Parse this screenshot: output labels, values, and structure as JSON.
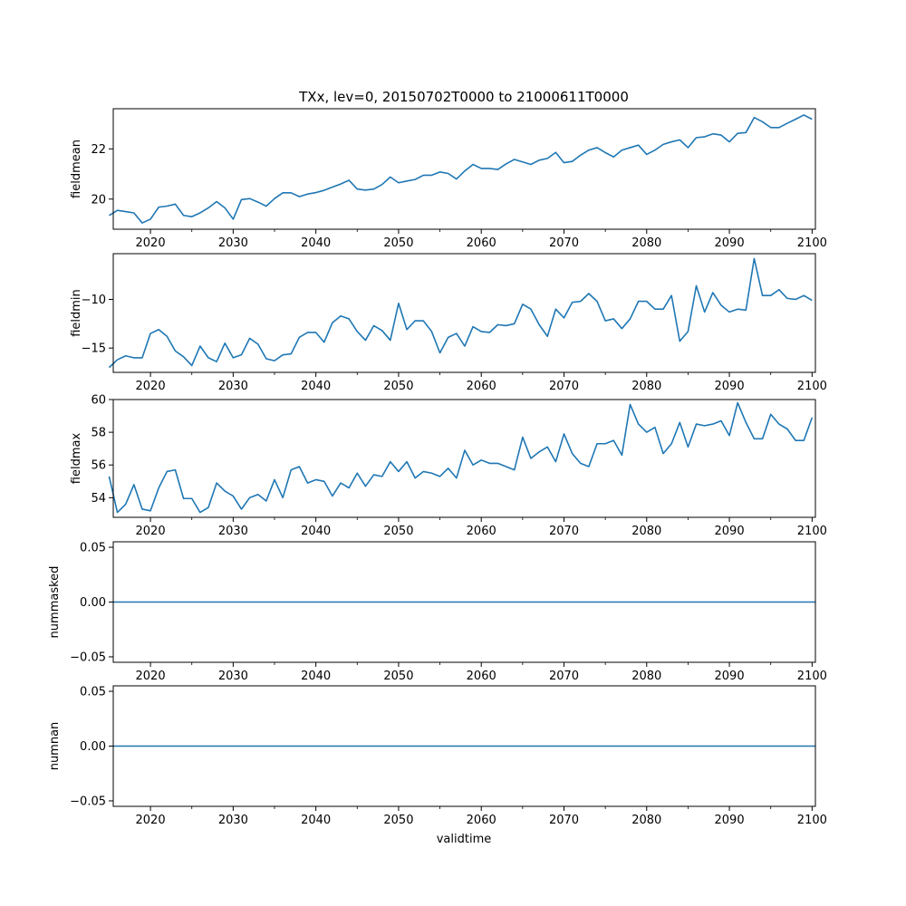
{
  "figure": {
    "title": "TXx, lev=0, 20150702T0000 to 21000611T0000",
    "xlabel": "validtime",
    "line_color": "#1f77b4"
  },
  "chart_data": [
    {
      "type": "line",
      "ylabel": "fieldmean",
      "xlim": [
        2015.5,
        2100.4
      ],
      "ylim": [
        18.8,
        23.6
      ],
      "xticks": [
        2020,
        2030,
        2040,
        2050,
        2060,
        2070,
        2080,
        2090,
        2100
      ],
      "yticks": [
        20,
        22
      ],
      "x": [
        2015,
        2016,
        2017,
        2018,
        2019,
        2020,
        2021,
        2022,
        2023,
        2024,
        2025,
        2026,
        2027,
        2028,
        2029,
        2030,
        2031,
        2032,
        2033,
        2034,
        2035,
        2036,
        2037,
        2038,
        2039,
        2040,
        2041,
        2042,
        2043,
        2044,
        2045,
        2046,
        2047,
        2048,
        2049,
        2050,
        2051,
        2052,
        2053,
        2054,
        2055,
        2056,
        2057,
        2058,
        2059,
        2060,
        2061,
        2062,
        2063,
        2064,
        2065,
        2066,
        2067,
        2068,
        2069,
        2070,
        2071,
        2072,
        2073,
        2074,
        2075,
        2076,
        2077,
        2078,
        2079,
        2080,
        2081,
        2082,
        2083,
        2084,
        2085,
        2086,
        2087,
        2088,
        2089,
        2090,
        2091,
        2092,
        2093,
        2094,
        2095,
        2096,
        2097,
        2098,
        2099,
        2100
      ],
      "values": [
        19.35,
        19.55,
        19.5,
        19.45,
        19.05,
        19.2,
        19.68,
        19.72,
        19.8,
        19.35,
        19.3,
        19.45,
        19.65,
        19.9,
        19.65,
        19.2,
        19.98,
        20.02,
        19.88,
        19.72,
        20.02,
        20.25,
        20.25,
        20.1,
        20.2,
        20.26,
        20.35,
        20.48,
        20.6,
        20.75,
        20.4,
        20.36,
        20.4,
        20.58,
        20.88,
        20.65,
        20.72,
        20.78,
        20.95,
        20.95,
        21.08,
        21.02,
        20.8,
        21.12,
        21.38,
        21.22,
        21.22,
        21.18,
        21.4,
        21.58,
        21.48,
        21.38,
        21.55,
        21.62,
        21.86,
        21.45,
        21.5,
        21.75,
        21.95,
        22.05,
        21.85,
        21.68,
        21.95,
        22.05,
        22.15,
        21.78,
        21.95,
        22.18,
        22.28,
        22.36,
        22.05,
        22.45,
        22.48,
        22.6,
        22.55,
        22.28,
        22.62,
        22.65,
        23.25,
        23.08,
        22.85,
        22.85,
        23.02,
        23.18,
        23.35,
        23.18
      ]
    },
    {
      "type": "line",
      "ylabel": "fieldmin",
      "xlim": [
        2015.5,
        2100.4
      ],
      "ylim": [
        -17.5,
        -5.3
      ],
      "xticks": [
        2020,
        2030,
        2040,
        2050,
        2060,
        2070,
        2080,
        2090,
        2100
      ],
      "yticks": [
        -15,
        -10
      ],
      "x": [
        2015,
        2016,
        2017,
        2018,
        2019,
        2020,
        2021,
        2022,
        2023,
        2024,
        2025,
        2026,
        2027,
        2028,
        2029,
        2030,
        2031,
        2032,
        2033,
        2034,
        2035,
        2036,
        2037,
        2038,
        2039,
        2040,
        2041,
        2042,
        2043,
        2044,
        2045,
        2046,
        2047,
        2048,
        2049,
        2050,
        2051,
        2052,
        2053,
        2054,
        2055,
        2056,
        2057,
        2058,
        2059,
        2060,
        2061,
        2062,
        2063,
        2064,
        2065,
        2066,
        2067,
        2068,
        2069,
        2070,
        2071,
        2072,
        2073,
        2074,
        2075,
        2076,
        2077,
        2078,
        2079,
        2080,
        2081,
        2082,
        2083,
        2084,
        2085,
        2086,
        2087,
        2088,
        2089,
        2090,
        2091,
        2092,
        2093,
        2094,
        2095,
        2096,
        2097,
        2098,
        2099,
        2100
      ],
      "values": [
        -17.0,
        -16.2,
        -15.8,
        -16.0,
        -16.0,
        -13.5,
        -13.1,
        -13.8,
        -15.3,
        -15.9,
        -16.8,
        -14.8,
        -16.0,
        -16.4,
        -14.5,
        -16.0,
        -15.7,
        -14.0,
        -14.6,
        -16.1,
        -16.3,
        -15.7,
        -15.6,
        -13.9,
        -13.4,
        -13.4,
        -14.4,
        -12.4,
        -11.7,
        -12.0,
        -13.3,
        -14.2,
        -12.7,
        -13.2,
        -14.2,
        -10.4,
        -13.1,
        -12.2,
        -12.2,
        -13.3,
        -15.5,
        -13.9,
        -13.5,
        -14.8,
        -12.8,
        -13.3,
        -13.4,
        -12.6,
        -12.7,
        -12.5,
        -10.5,
        -11.0,
        -12.6,
        -13.8,
        -11.0,
        -11.9,
        -10.3,
        -10.2,
        -9.4,
        -10.2,
        -12.2,
        -12.0,
        -13.0,
        -12.0,
        -10.2,
        -10.2,
        -11.0,
        -11.0,
        -9.6,
        -14.3,
        -13.3,
        -8.6,
        -11.3,
        -9.3,
        -10.6,
        -11.3,
        -11.0,
        -11.1,
        -5.8,
        -9.6,
        -9.6,
        -9.0,
        -9.9,
        -10.0,
        -9.6,
        -10.1
      ]
    },
    {
      "type": "line",
      "ylabel": "fieldmax",
      "xlim": [
        2015.5,
        2100.4
      ],
      "ylim": [
        52.8,
        60.0
      ],
      "xticks": [
        2020,
        2030,
        2040,
        2050,
        2060,
        2070,
        2080,
        2090,
        2100
      ],
      "yticks": [
        54,
        56,
        58,
        60
      ],
      "x": [
        2015,
        2016,
        2017,
        2018,
        2019,
        2020,
        2021,
        2022,
        2023,
        2024,
        2025,
        2026,
        2027,
        2028,
        2029,
        2030,
        2031,
        2032,
        2033,
        2034,
        2035,
        2036,
        2037,
        2038,
        2039,
        2040,
        2041,
        2042,
        2043,
        2044,
        2045,
        2046,
        2047,
        2048,
        2049,
        2050,
        2051,
        2052,
        2053,
        2054,
        2055,
        2056,
        2057,
        2058,
        2059,
        2060,
        2061,
        2062,
        2063,
        2064,
        2065,
        2066,
        2067,
        2068,
        2069,
        2070,
        2071,
        2072,
        2073,
        2074,
        2075,
        2076,
        2077,
        2078,
        2079,
        2080,
        2081,
        2082,
        2083,
        2084,
        2085,
        2086,
        2087,
        2088,
        2089,
        2090,
        2091,
        2092,
        2093,
        2094,
        2095,
        2096,
        2097,
        2098,
        2099,
        2100
      ],
      "values": [
        55.3,
        53.1,
        53.6,
        54.8,
        53.3,
        53.2,
        54.6,
        55.6,
        55.7,
        53.95,
        53.95,
        53.1,
        53.4,
        54.9,
        54.4,
        54.1,
        53.3,
        54.0,
        54.2,
        53.8,
        55.1,
        54.0,
        55.7,
        55.9,
        54.9,
        55.1,
        55.0,
        54.1,
        54.9,
        54.6,
        55.5,
        54.7,
        55.4,
        55.3,
        56.2,
        55.6,
        56.2,
        55.2,
        55.6,
        55.5,
        55.3,
        55.8,
        55.2,
        56.9,
        56.0,
        56.3,
        56.1,
        56.1,
        55.9,
        55.7,
        57.7,
        56.4,
        56.8,
        57.1,
        56.2,
        57.9,
        56.7,
        56.1,
        55.9,
        57.3,
        57.3,
        57.5,
        56.6,
        59.7,
        58.5,
        58.0,
        58.3,
        56.7,
        57.3,
        58.6,
        57.1,
        58.5,
        58.4,
        58.5,
        58.7,
        57.8,
        59.8,
        58.6,
        57.6,
        57.6,
        59.1,
        58.5,
        58.2,
        57.5,
        57.5,
        58.9
      ]
    },
    {
      "type": "line",
      "ylabel": "nummasked",
      "xlim": [
        2015.5,
        2100.4
      ],
      "ylim": [
        -0.055,
        0.055
      ],
      "xticks": [
        2020,
        2030,
        2040,
        2050,
        2060,
        2070,
        2080,
        2090,
        2100
      ],
      "yticks": [
        -0.05,
        0.0,
        0.05
      ],
      "x": [
        2015.5,
        2100.4
      ],
      "values": [
        0.0,
        0.0
      ]
    },
    {
      "type": "line",
      "ylabel": "numnan",
      "xlim": [
        2015.5,
        2100.4
      ],
      "ylim": [
        -0.055,
        0.055
      ],
      "xticks": [
        2020,
        2030,
        2040,
        2050,
        2060,
        2070,
        2080,
        2090,
        2100
      ],
      "yticks": [
        -0.05,
        0.0,
        0.05
      ],
      "x": [
        2015.5,
        2100.4
      ],
      "values": [
        0.0,
        0.0
      ]
    }
  ]
}
